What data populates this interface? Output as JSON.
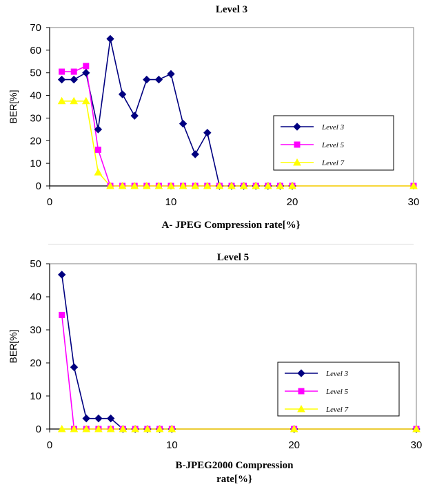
{
  "chart_data": [
    {
      "type": "line",
      "title": "Level 3",
      "xlabel": "A- JPEG Compression rate[%}",
      "xlabel_lines": [
        "A- JPEG Compression rate[%}"
      ],
      "ylabel": "BER[%]",
      "xlim": [
        0,
        30
      ],
      "ylim": [
        0,
        70
      ],
      "xticks": [
        0,
        10,
        20,
        30
      ],
      "yticks": [
        0,
        10,
        20,
        30,
        40,
        50,
        60,
        70
      ],
      "grid": false,
      "legend_position": "right",
      "series": [
        {
          "name": "Level 3",
          "color": "#000080",
          "marker": "diamond",
          "x": [
            1,
            2,
            3,
            4,
            5,
            6,
            7,
            8,
            9,
            10,
            11,
            12,
            13,
            14,
            15,
            16,
            17,
            18,
            19,
            20
          ],
          "y": [
            47,
            47,
            50,
            25,
            65,
            40.5,
            31,
            47,
            47,
            49.5,
            27.5,
            14,
            23.5,
            0,
            0,
            0,
            0,
            0,
            0,
            0
          ]
        },
        {
          "name": "Level 5",
          "color": "#ff00ff",
          "marker": "square",
          "x": [
            1,
            2,
            3,
            4,
            5,
            6,
            7,
            8,
            9,
            10,
            11,
            12,
            13,
            14,
            15,
            16,
            17,
            18,
            19,
            20,
            30
          ],
          "y": [
            50.5,
            50.5,
            53,
            16,
            0,
            0,
            0,
            0,
            0,
            0,
            0,
            0,
            0,
            0,
            0,
            0,
            0,
            0,
            0,
            0,
            0
          ]
        },
        {
          "name": "Level 7",
          "color": "#ffff00",
          "marker": "triangle",
          "x": [
            1,
            2,
            3,
            4,
            5,
            6,
            7,
            8,
            9,
            10,
            11,
            12,
            13,
            14,
            15,
            16,
            17,
            18,
            19,
            20,
            30
          ],
          "y": [
            37.5,
            37.5,
            37.5,
            6,
            0,
            0,
            0,
            0,
            0,
            0,
            0,
            0,
            0,
            0,
            0,
            0,
            0,
            0,
            0,
            0,
            0
          ]
        }
      ]
    },
    {
      "type": "line",
      "title": "Level 5",
      "xlabel": "B-JPEG2000 Compression rate[%}",
      "xlabel_lines": [
        "B-JPEG2000 Compression",
        "rate[%}"
      ],
      "ylabel": "BER[%]",
      "xlim": [
        0,
        30
      ],
      "ylim": [
        0,
        50
      ],
      "xticks": [
        0,
        10,
        20,
        30
      ],
      "yticks": [
        0,
        10,
        20,
        30,
        40,
        50
      ],
      "grid": false,
      "legend_position": "right",
      "series": [
        {
          "name": "Level 3",
          "color": "#000080",
          "marker": "diamond",
          "x": [
            1,
            2,
            3,
            4,
            5,
            6,
            7,
            8,
            9,
            10,
            20,
            30
          ],
          "y": [
            46.7,
            18.7,
            3.2,
            3.2,
            3.2,
            0,
            0,
            0,
            0,
            0,
            0,
            0
          ]
        },
        {
          "name": "Level 5",
          "color": "#ff00ff",
          "marker": "square",
          "x": [
            1,
            2,
            3,
            4,
            5,
            6,
            7,
            8,
            9,
            10,
            20,
            30
          ],
          "y": [
            34.5,
            0,
            0,
            0,
            0,
            0,
            0,
            0,
            0,
            0,
            0,
            0
          ]
        },
        {
          "name": "Level 7",
          "color": "#ffff00",
          "marker": "triangle",
          "x": [
            1,
            2,
            3,
            4,
            5,
            6,
            7,
            8,
            9,
            10,
            20,
            30
          ],
          "y": [
            0,
            0,
            0,
            0,
            0,
            0,
            0,
            0,
            0,
            0,
            0,
            0
          ]
        }
      ]
    }
  ]
}
